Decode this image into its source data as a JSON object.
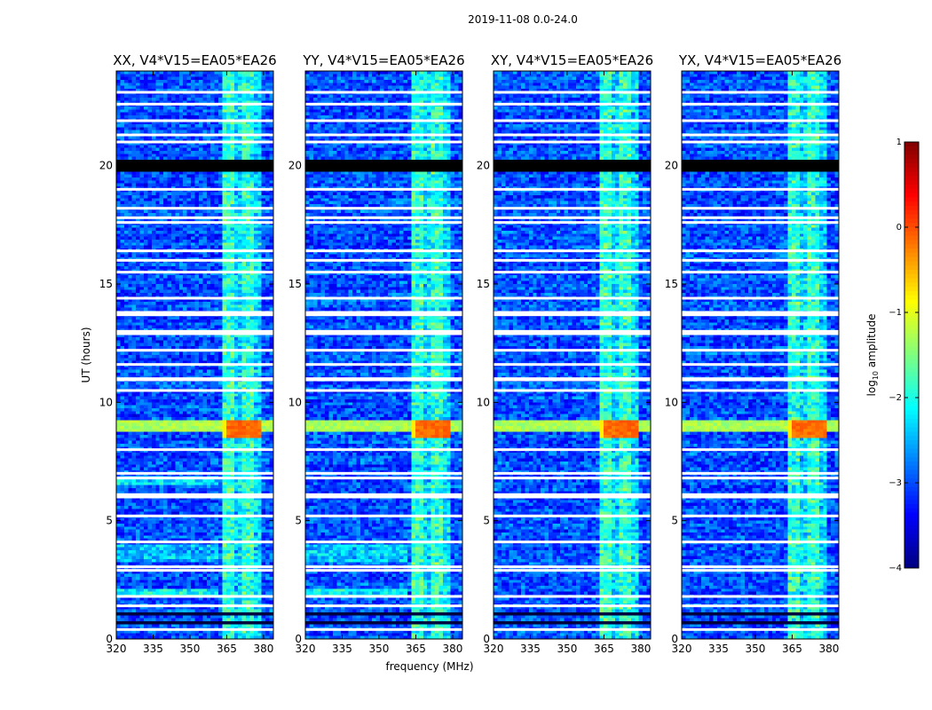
{
  "chart_data": {
    "type": "heatmap",
    "suptitle": "2019-11-08 0.0-24.0",
    "panels": [
      {
        "title": "XX, V4*V15=EA05*EA26",
        "polarization": "XX"
      },
      {
        "title": "YY, V4*V15=EA05*EA26",
        "polarization": "YY"
      },
      {
        "title": "XY, V4*V15=EA05*EA26",
        "polarization": "XY"
      },
      {
        "title": "YX, V4*V15=EA05*EA26",
        "polarization": "YX"
      }
    ],
    "xlabel": "frequency (MHz)",
    "ylabel": "UT (hours)",
    "xlim": [
      320,
      384
    ],
    "ylim": [
      0,
      24
    ],
    "xticks": [
      320,
      335,
      350,
      365,
      380
    ],
    "yticks": [
      0,
      5,
      10,
      15,
      20
    ],
    "colorbar": {
      "label": "log₁₀ amplitude",
      "label_base": "log",
      "label_sub": "10",
      "label_rest": " amplitude",
      "min": -4,
      "max": 1,
      "ticks": [
        {
          "value": 1,
          "label": "1"
        },
        {
          "value": 0,
          "label": "0"
        },
        {
          "value": -1,
          "label": "−1"
        },
        {
          "value": -2,
          "label": "−2"
        },
        {
          "value": -3,
          "label": "−3"
        },
        {
          "value": -4,
          "label": "−4"
        }
      ],
      "colormap": "jet"
    },
    "features": {
      "background_level": -3.0,
      "rfi_band_mhz": [
        364,
        379
      ],
      "strong_rfi_ut": [
        8.55,
        9.3
      ],
      "strong_rfi_peak": 0.0,
      "broadband_line_ut": 9.0,
      "black_gap_ut": [
        19.8,
        20.2
      ],
      "flagged_rows_ut": [
        0.4,
        1.4,
        1.8,
        2.9,
        3.05,
        4.1,
        5.2,
        6.0,
        6.1,
        6.8,
        7.0,
        8.0,
        10.5,
        10.95,
        11.0,
        11.6,
        12.2,
        12.9,
        13.0,
        13.7,
        13.8,
        14.4,
        15.5,
        16.0,
        16.4,
        17.6,
        17.8,
        18.2,
        19.0,
        21.0,
        21.3,
        21.9,
        22.6,
        23.1
      ]
    }
  }
}
